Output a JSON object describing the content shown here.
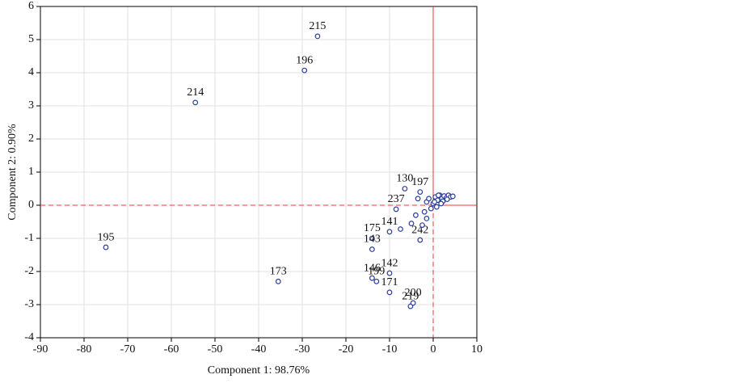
{
  "chart_data": {
    "type": "scatter",
    "x_label": "Component 1: 98.76%",
    "y_label": "Component 2: 0.90%",
    "xlim": [
      -90,
      10
    ],
    "xticks": [
      -90,
      -80,
      -70,
      -60,
      -50,
      -40,
      -30,
      -20,
      -10,
      0,
      10
    ],
    "ylim": [
      -4,
      6
    ],
    "yticks": [
      -4,
      -3,
      -2,
      -1,
      0,
      1,
      2,
      3,
      4,
      5,
      6
    ],
    "grid": true,
    "reference_lines": {
      "x": 0,
      "y": 0,
      "color": "#e8383d"
    },
    "series": [
      {
        "name": null,
        "color": "#2b3f9e",
        "x": [
          -26.5,
          -29.5,
          -54.5,
          -75,
          -35.5,
          -10,
          -14,
          -13,
          -10,
          -5.2,
          -4.6,
          -14,
          -14,
          -10,
          -6.5,
          -3,
          -8.5,
          -3,
          -7.5,
          -5,
          -4,
          -2,
          -1.5,
          -1,
          0,
          0.5,
          1,
          1.5,
          2,
          2.5,
          3,
          3.5,
          4,
          4.5,
          -0.5,
          0.8,
          2.2,
          3.2,
          1.2,
          -2.5,
          -3.5,
          -1.5,
          0.3,
          1.8
        ],
        "y": [
          5.1,
          4.07,
          3.1,
          -1.27,
          -2.3,
          -2.05,
          -2.2,
          -2.3,
          -2.63,
          -3.05,
          -2.95,
          -1.0,
          -1.33,
          -0.8,
          0.5,
          0.4,
          -0.12,
          -1.05,
          -0.72,
          -0.55,
          -0.3,
          -0.2,
          0.1,
          0.2,
          0.05,
          0.25,
          0.15,
          0.3,
          0.2,
          0.28,
          0.22,
          0.3,
          0.25,
          0.27,
          -0.1,
          -0.05,
          0.12,
          0.18,
          0.3,
          -0.6,
          0.2,
          -0.4,
          0.1,
          0.05
        ],
        "labels": [
          "215",
          "196",
          "214",
          "195",
          "173",
          "142",
          "146",
          "199",
          "171",
          "219",
          "200",
          "175",
          "143",
          "141",
          "130",
          "197",
          "237",
          "242",
          null,
          null,
          null,
          null,
          null,
          null,
          null,
          null,
          null,
          null,
          null,
          null,
          null,
          null,
          null,
          null,
          null,
          null,
          null,
          null,
          null,
          null,
          null,
          null,
          null,
          null
        ]
      }
    ]
  }
}
